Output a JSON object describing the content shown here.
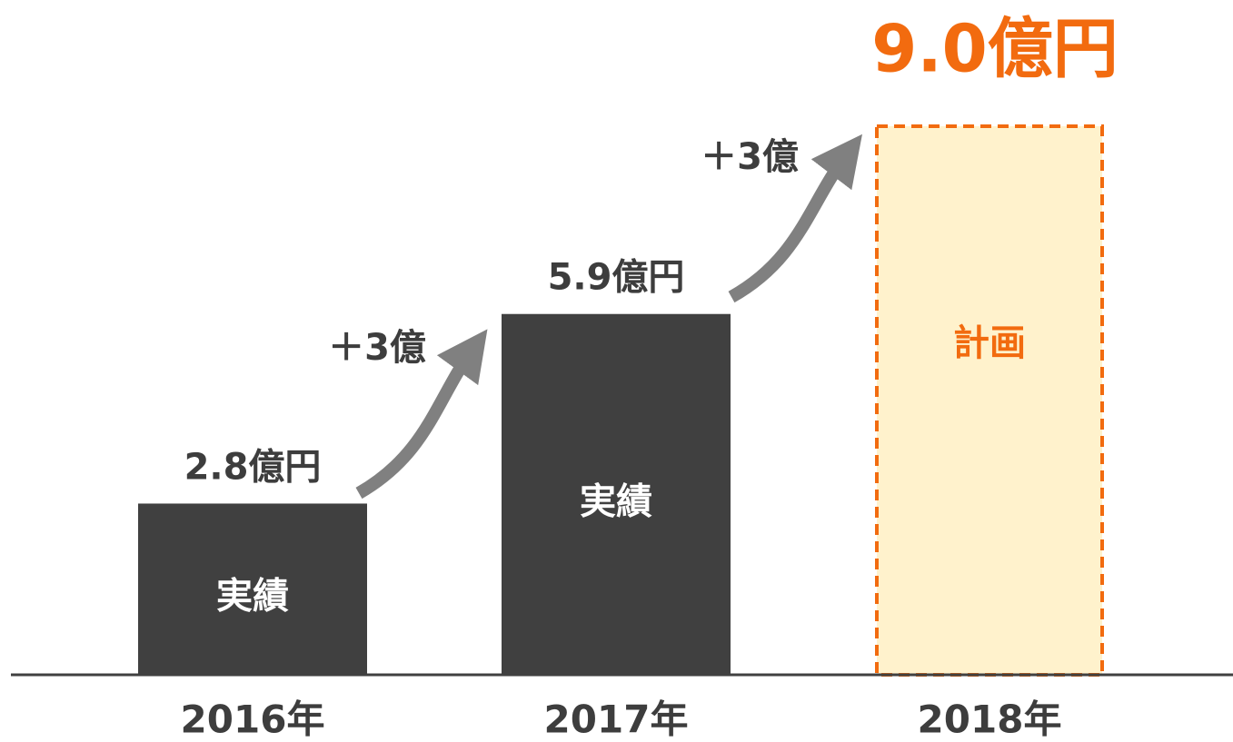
{
  "chart_data": {
    "type": "bar",
    "categories": [
      "2016年",
      "2017年",
      "2018年"
    ],
    "values": [
      2.8,
      5.9,
      9.0
    ],
    "value_labels": [
      "2.8億円",
      "5.9億円",
      "9.0億円"
    ],
    "bar_labels": [
      "実績",
      "実績",
      "計画"
    ],
    "colors": [
      "#404040",
      "#404040",
      "#fff2cc"
    ],
    "dashed": [
      false,
      false,
      true
    ],
    "annotations": [
      "＋3億",
      "＋3億"
    ]
  }
}
